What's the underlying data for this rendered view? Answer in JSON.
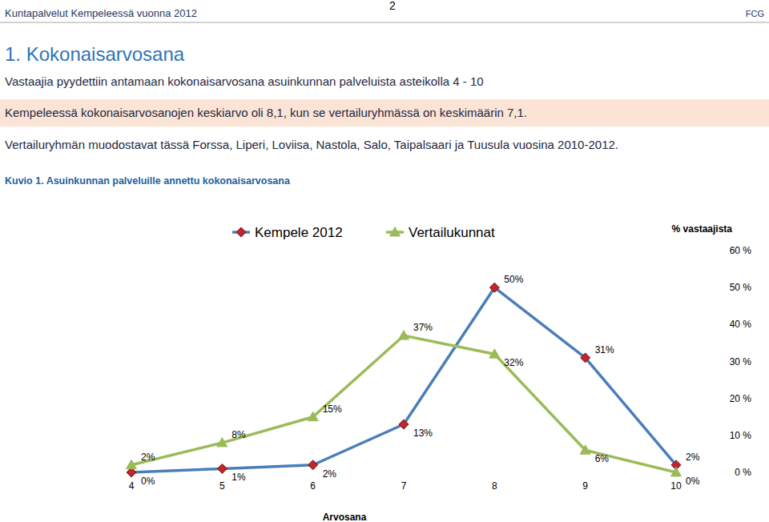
{
  "header": {
    "left": "Kuntapalvelut Kempeleessä vuonna 2012",
    "page": "2",
    "right": "FCG"
  },
  "section": {
    "title": "1. Kokonaisarvosana",
    "intro": "Vastaajia pyydettiin antamaan kokonaisarvosana asuinkunnan palveluista asteikolla 4 - 10",
    "highlight": "Kempeleessä kokonaisarvosanojen keskiarvo oli 8,1, kun se vertailuryhmässä on keskimäärin 7,1.",
    "note": "Vertailuryhmän muodostavat tässä Forssa, Liperi, Loviisa, Nastola, Salo, Taipalsaari ja Tuusula vuosina 2010-2012.",
    "figure_caption": "Kuvio 1. Asuinkunnan palveluille annettu kokonaisarvosana"
  },
  "chart_data": {
    "type": "line",
    "x_label": "Arvosana",
    "y_label": "% vastaajista",
    "categories": [
      "4",
      "5",
      "6",
      "7",
      "8",
      "9",
      "10"
    ],
    "series": [
      {
        "name": "Kempele 2012",
        "color": "#4a7ebb",
        "marker": "diamond",
        "values": [
          0,
          1,
          2,
          13,
          50,
          31,
          2
        ],
        "value_labels": [
          "0%",
          "1%",
          "2%",
          "13%",
          "50%",
          "31%",
          "2%"
        ]
      },
      {
        "name": "Vertailukunnat",
        "color": "#9bbb59",
        "marker": "triangle",
        "values": [
          2,
          8,
          15,
          37,
          32,
          6,
          0
        ],
        "value_labels": [
          "2%",
          "8%",
          "15%",
          "37%",
          "32%",
          "6%",
          "0%"
        ]
      }
    ],
    "ylim": [
      0,
      60
    ],
    "yticks": [
      {
        "value": 0,
        "label": "0 %"
      },
      {
        "value": 10,
        "label": "10 %"
      },
      {
        "value": 20,
        "label": "20 %"
      },
      {
        "value": 30,
        "label": "30 %"
      },
      {
        "value": 40,
        "label": "40 %"
      },
      {
        "value": 50,
        "label": "50 %"
      },
      {
        "value": 60,
        "label": "60 %"
      }
    ],
    "grid": false,
    "legend": "top",
    "data_labels": true
  }
}
